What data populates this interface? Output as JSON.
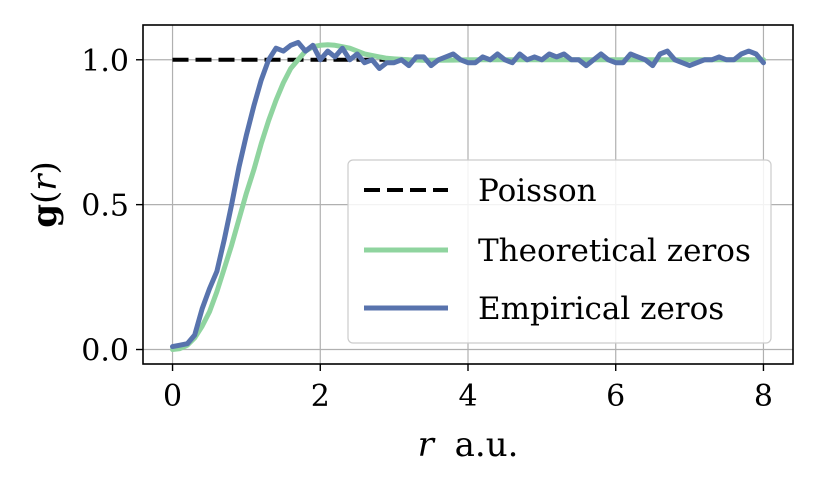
{
  "chart_data": {
    "type": "line",
    "xlabel": {
      "var": "r",
      "unit": "a.u."
    },
    "ylabel": {
      "func": "g",
      "var": "r"
    },
    "xlim": [
      -0.4,
      8.4
    ],
    "ylim": [
      -0.05,
      1.12
    ],
    "xticks": [
      0,
      2,
      4,
      6,
      8
    ],
    "xtick_labels": [
      "0",
      "2",
      "4",
      "6",
      "8"
    ],
    "yticks": [
      0.0,
      0.5,
      1.0
    ],
    "ytick_labels": [
      "0.0",
      "0.5",
      "1.0"
    ],
    "grid": true,
    "legend_position": "center-right",
    "series": [
      {
        "name": "Poisson",
        "color": "#000000",
        "style": "dashed",
        "x": [
          0.0,
          3.0
        ],
        "y": [
          1.0,
          1.0
        ]
      },
      {
        "name": "Theoretical zeros",
        "color": "#8fd49f",
        "style": "solid",
        "x": [
          0.0,
          0.1,
          0.2,
          0.3,
          0.4,
          0.5,
          0.6,
          0.7,
          0.8,
          0.9,
          1.0,
          1.1,
          1.2,
          1.3,
          1.4,
          1.5,
          1.6,
          1.7,
          1.8,
          1.9,
          2.0,
          2.1,
          2.2,
          2.3,
          2.4,
          2.5,
          2.6,
          2.7,
          2.8,
          2.9,
          3.0,
          3.2,
          3.4,
          3.6,
          3.8,
          4.0,
          5.0,
          6.0,
          7.0,
          8.0
        ],
        "y": [
          0.0,
          0.003,
          0.015,
          0.04,
          0.08,
          0.13,
          0.2,
          0.28,
          0.36,
          0.45,
          0.54,
          0.62,
          0.71,
          0.79,
          0.86,
          0.92,
          0.97,
          1.0,
          1.03,
          1.045,
          1.05,
          1.052,
          1.05,
          1.045,
          1.04,
          1.03,
          1.02,
          1.015,
          1.01,
          1.005,
          1.003,
          1.0,
          0.998,
          0.998,
          0.999,
          1.0,
          1.0,
          1.0,
          1.0,
          1.0
        ]
      },
      {
        "name": "Empirical zeros",
        "color": "#5873ad",
        "style": "solid",
        "x": [
          0.0,
          0.1,
          0.2,
          0.3,
          0.4,
          0.5,
          0.6,
          0.7,
          0.8,
          0.9,
          1.0,
          1.1,
          1.2,
          1.3,
          1.4,
          1.5,
          1.6,
          1.7,
          1.8,
          1.9,
          2.0,
          2.1,
          2.2,
          2.3,
          2.4,
          2.5,
          2.6,
          2.7,
          2.8,
          2.9,
          3.0,
          3.1,
          3.2,
          3.3,
          3.4,
          3.5,
          3.6,
          3.7,
          3.8,
          3.9,
          4.0,
          4.1,
          4.2,
          4.3,
          4.4,
          4.5,
          4.6,
          4.7,
          4.8,
          4.9,
          5.0,
          5.1,
          5.2,
          5.3,
          5.4,
          5.5,
          5.6,
          5.7,
          5.8,
          5.9,
          6.0,
          6.1,
          6.2,
          6.3,
          6.4,
          6.5,
          6.6,
          6.7,
          6.8,
          6.9,
          7.0,
          7.1,
          7.2,
          7.3,
          7.4,
          7.5,
          7.6,
          7.7,
          7.8,
          7.9,
          8.0
        ],
        "y": [
          0.01,
          0.015,
          0.02,
          0.05,
          0.14,
          0.21,
          0.27,
          0.38,
          0.5,
          0.63,
          0.74,
          0.84,
          0.93,
          1.0,
          1.04,
          1.03,
          1.05,
          1.06,
          1.03,
          1.05,
          1.0,
          1.03,
          1.01,
          1.04,
          1.0,
          1.02,
          0.99,
          1.0,
          0.97,
          0.99,
          0.99,
          1.0,
          0.98,
          1.01,
          1.01,
          0.98,
          1.0,
          1.01,
          1.02,
          1.0,
          0.99,
          0.99,
          1.01,
          1.0,
          1.02,
          1.0,
          0.99,
          1.02,
          1.0,
          1.01,
          1.0,
          1.02,
          1.01,
          1.02,
          1.0,
          1.0,
          0.98,
          1.0,
          1.02,
          1.0,
          0.99,
          0.99,
          1.02,
          1.01,
          1.0,
          0.98,
          1.02,
          1.03,
          1.0,
          0.99,
          0.98,
          0.99,
          1.0,
          1.0,
          1.01,
          1.0,
          1.0,
          1.02,
          1.03,
          1.02,
          0.99
        ]
      }
    ]
  }
}
